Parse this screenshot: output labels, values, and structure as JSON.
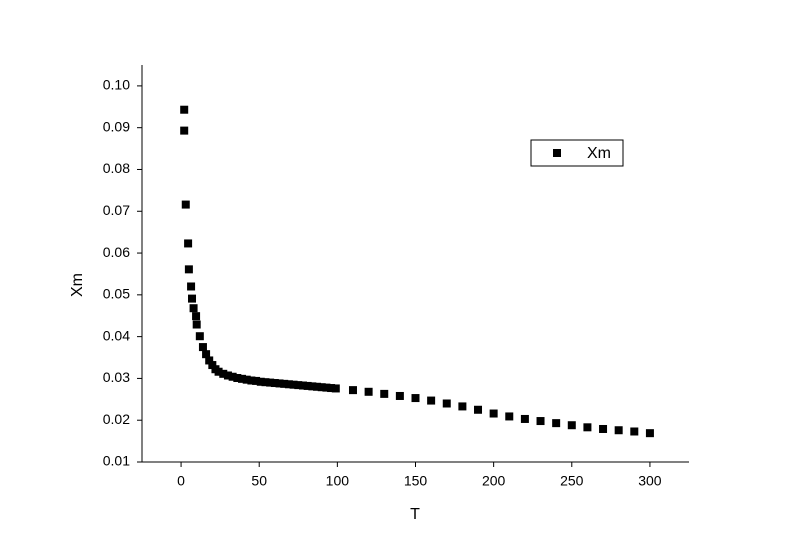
{
  "chart_data": {
    "type": "scatter",
    "x_label": "T",
    "y_label": "Xm",
    "xlim": [
      -25,
      325
    ],
    "ylim": [
      0.01,
      0.105
    ],
    "xticks": [
      0,
      50,
      100,
      150,
      200,
      250,
      300
    ],
    "yticks": [
      0.01,
      0.02,
      0.03,
      0.04,
      0.05,
      0.06,
      0.07,
      0.08,
      0.09,
      {
        "value": 0.1,
        "label": "0.10"
      }
    ],
    "legend": "upper right",
    "series": [
      {
        "name": "Xm",
        "color": "#000000",
        "x": [
          2,
          2,
          3,
          4.5,
          5,
          6.4,
          7,
          8,
          9.6,
          10,
          12,
          14,
          16,
          18,
          20,
          22,
          24,
          27,
          30,
          33,
          36,
          39,
          42,
          45,
          48,
          51,
          54,
          57,
          60,
          63,
          66,
          69,
          72,
          75,
          78,
          81,
          84,
          87,
          90,
          93,
          96,
          99,
          110,
          120,
          130,
          140,
          150,
          160,
          170,
          180,
          190,
          200,
          210,
          220,
          230,
          240,
          250,
          260,
          270,
          280,
          290,
          300
        ],
        "values": [
          0.0943,
          0.0893,
          0.0716,
          0.0623,
          0.0561,
          0.052,
          0.0491,
          0.0468,
          0.0449,
          0.0429,
          0.0401,
          0.0375,
          0.0358,
          0.0343,
          0.0332,
          0.0322,
          0.0316,
          0.0311,
          0.0307,
          0.0304,
          0.0301,
          0.0299,
          0.0297,
          0.0295,
          0.0294,
          0.0292,
          0.0291,
          0.029,
          0.0289,
          0.0288,
          0.0287,
          0.0286,
          0.0285,
          0.0284,
          0.0283,
          0.0282,
          0.0281,
          0.028,
          0.0279,
          0.0278,
          0.0277,
          0.0276,
          0.0272,
          0.0268,
          0.0263,
          0.0258,
          0.0253,
          0.0247,
          0.024,
          0.0233,
          0.0225,
          0.0216,
          0.0209,
          0.0203,
          0.0198,
          0.0193,
          0.0188,
          0.0183,
          0.0179,
          0.0176,
          0.0173,
          0.0169
        ]
      }
    ]
  }
}
